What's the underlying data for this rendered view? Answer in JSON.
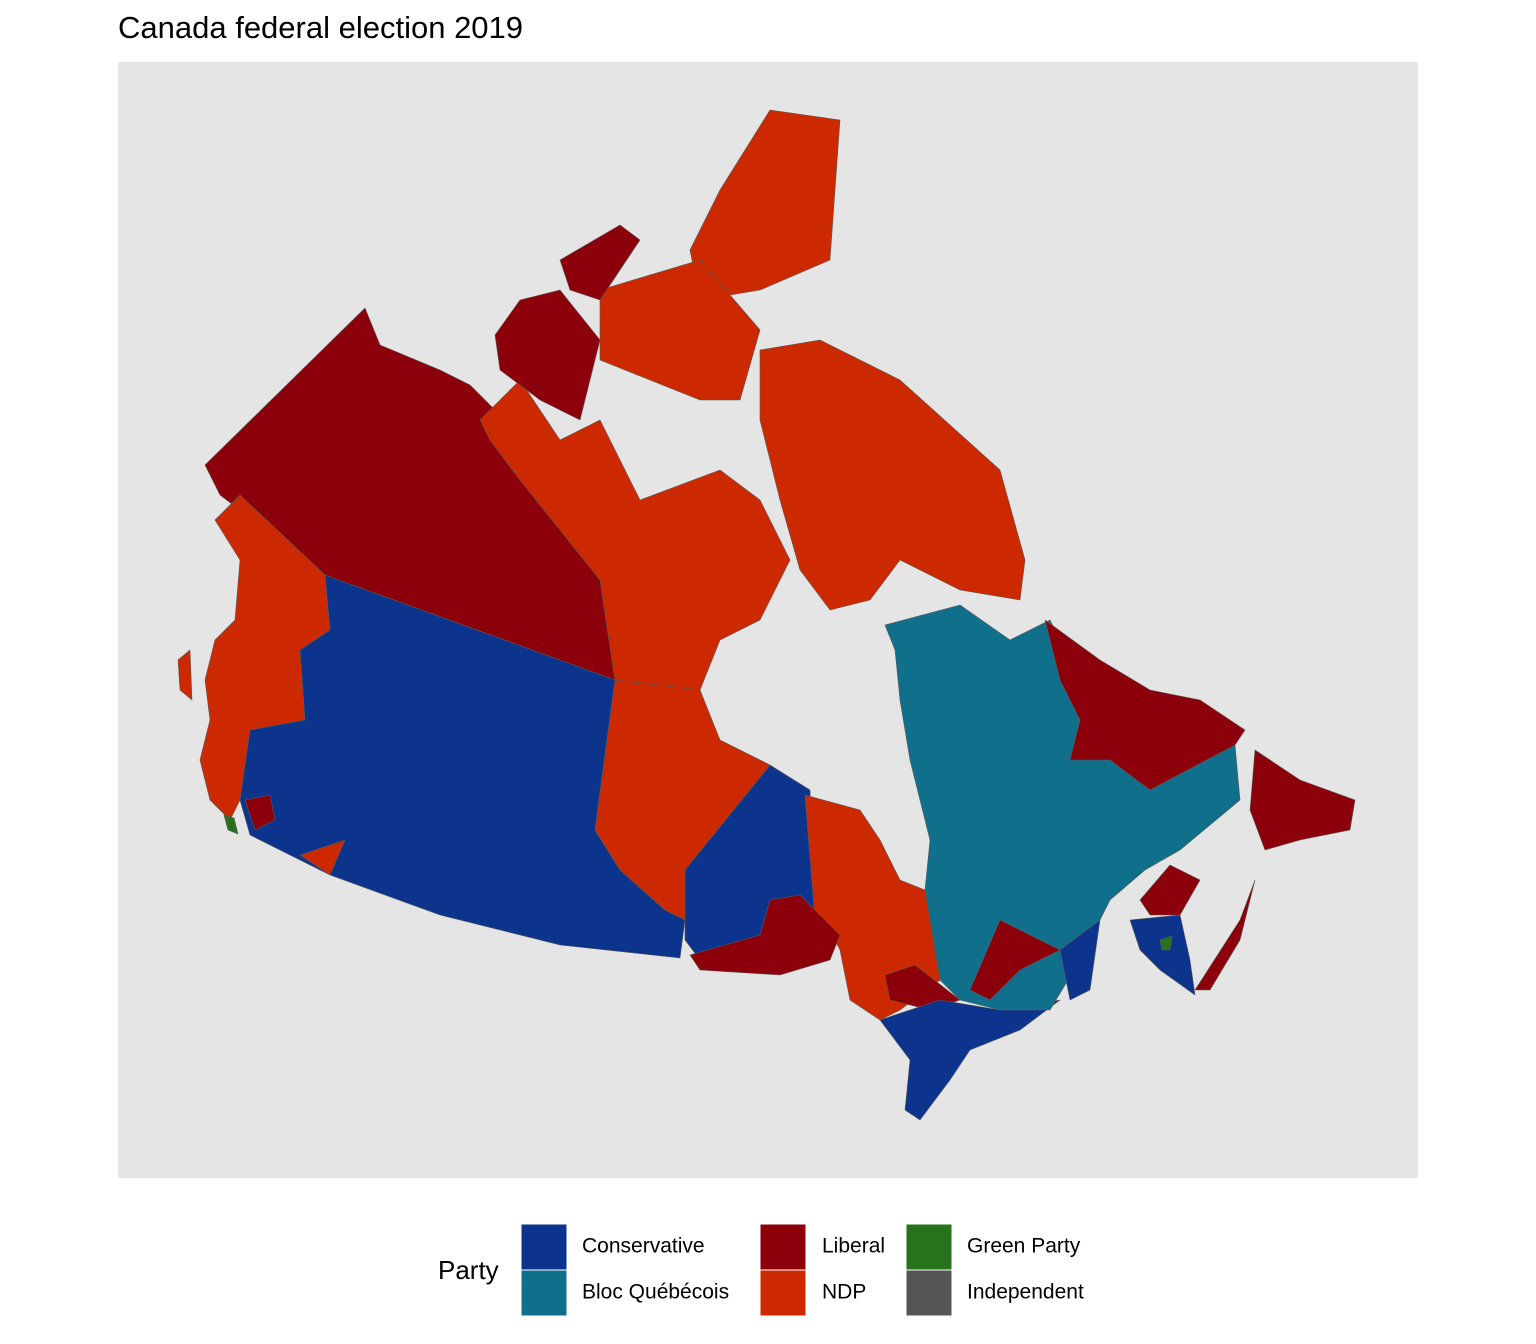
{
  "title": "Canada federal election 2019",
  "legend": {
    "title": "Party",
    "items": [
      {
        "label": "Conservative",
        "color": "#0d348c"
      },
      {
        "label": "Bloc Québécois",
        "color": "#10708c"
      },
      {
        "label": "Liberal",
        "color": "#8c000b"
      },
      {
        "label": "NDP",
        "color": "#cd2900"
      },
      {
        "label": "Green Party",
        "color": "#26731c"
      },
      {
        "label": "Independent",
        "color": "#555555"
      }
    ]
  }
}
